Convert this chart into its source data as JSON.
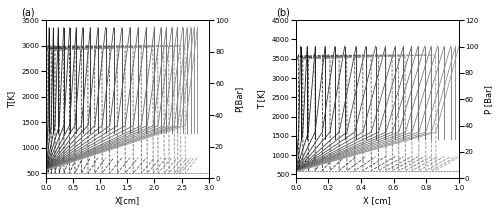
{
  "panel_a": {
    "label": "(a)",
    "x_max": 3.0,
    "x_ticks": [
      0,
      0.5,
      1.0,
      1.5,
      2.0,
      2.5,
      3.0
    ],
    "x_label": "X[cm]",
    "T_min": 400,
    "T_max": 3500,
    "T_label": "T[K]",
    "T_yticks": [
      500,
      1000,
      1500,
      2000,
      2500,
      3000,
      3500
    ],
    "P_max": 100,
    "P_label": "P[Bar]",
    "P_yticks": [
      0,
      20,
      40,
      60,
      80,
      100
    ],
    "T_unburned": 500,
    "T_burned": 3000,
    "P_ambient": 5,
    "P_peak": 95,
    "shock_positions": [
      0.06,
      0.14,
      0.23,
      0.33,
      0.44,
      0.56,
      0.68,
      0.82,
      0.96,
      1.1,
      1.25,
      1.4,
      1.55,
      1.7,
      1.85,
      2.0,
      2.12,
      2.22,
      2.32,
      2.42,
      2.52,
      2.6,
      2.67,
      2.73,
      2.79
    ],
    "reaction_fracs": [
      0.7,
      0.72,
      0.74,
      0.75,
      0.76,
      0.78,
      0.79,
      0.8,
      0.81,
      0.82,
      0.83,
      0.84,
      0.85,
      0.86,
      0.87,
      0.88,
      0.88,
      0.89,
      0.89,
      0.9,
      0.9,
      0.91,
      0.91,
      0.91,
      0.92
    ],
    "n_profiles": 25
  },
  "panel_b": {
    "label": "(b)",
    "x_max": 1.0,
    "x_ticks": [
      0,
      0.2,
      0.4,
      0.6,
      0.8,
      1.0
    ],
    "x_label": "X [cm]",
    "T_min": 400,
    "T_max": 4500,
    "T_label": "T [K]",
    "T_yticks": [
      500,
      1000,
      1500,
      2000,
      2500,
      3000,
      3500,
      4000,
      4500
    ],
    "P_max": 120,
    "P_label": "P [Bar]",
    "P_yticks": [
      0,
      20,
      40,
      60,
      80,
      100,
      120
    ],
    "T_unburned": 600,
    "T_burned": 3600,
    "P_ambient": 5,
    "P_peak": 100,
    "shock_positions": [
      0.03,
      0.07,
      0.12,
      0.18,
      0.24,
      0.3,
      0.37,
      0.43,
      0.49,
      0.55,
      0.61,
      0.66,
      0.71,
      0.75,
      0.79,
      0.83,
      0.87,
      0.91,
      0.95,
      0.98,
      1.0
    ],
    "reaction_fracs": [
      0.6,
      0.62,
      0.64,
      0.66,
      0.68,
      0.7,
      0.72,
      0.73,
      0.74,
      0.75,
      0.76,
      0.77,
      0.78,
      0.79,
      0.8,
      0.81,
      0.82,
      0.83,
      0.84,
      0.85,
      0.86
    ],
    "n_profiles": 21
  },
  "figsize": [
    5.0,
    2.12
  ],
  "dpi": 100,
  "lw": 0.6,
  "fontsize_label": 6,
  "fontsize_tick": 5,
  "fontsize_panel": 7
}
